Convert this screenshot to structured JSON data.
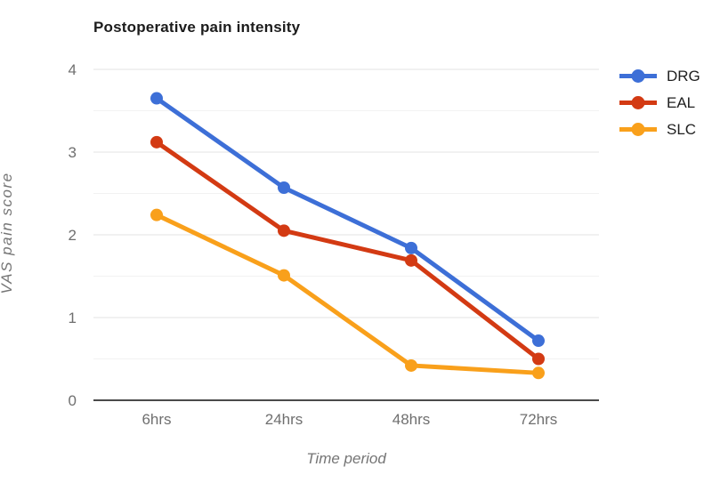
{
  "chart_data": {
    "type": "line",
    "title": "Postoperative pain intensity",
    "xlabel": "Time period",
    "ylabel": "VAS pain score",
    "categories": [
      "6hrs",
      "24hrs",
      "48hrs",
      "72hrs"
    ],
    "series": [
      {
        "name": "DRG",
        "color": "#3d6fd7",
        "values": [
          3.65,
          2.57,
          1.84,
          0.72
        ]
      },
      {
        "name": "EAL",
        "color": "#d33a13",
        "values": [
          3.12,
          2.05,
          1.69,
          0.5
        ]
      },
      {
        "name": "SLC",
        "color": "#f9a01b",
        "values": [
          2.24,
          1.51,
          0.42,
          0.33
        ]
      }
    ],
    "ylim": [
      0,
      4
    ],
    "yticks": [
      0,
      1,
      2,
      3,
      4
    ],
    "minor_grid_step": 0.5,
    "grid": true,
    "legend_position": "right",
    "colors": {
      "grid_major": "#e3e3e3",
      "grid_minor": "#f2f2f2",
      "axis_line": "#4a4a4a",
      "tick_text": "#6f6f6f",
      "legend_text": "#1f1f1f",
      "title_text": "#1c1c1c",
      "background": "#ffffff"
    }
  }
}
